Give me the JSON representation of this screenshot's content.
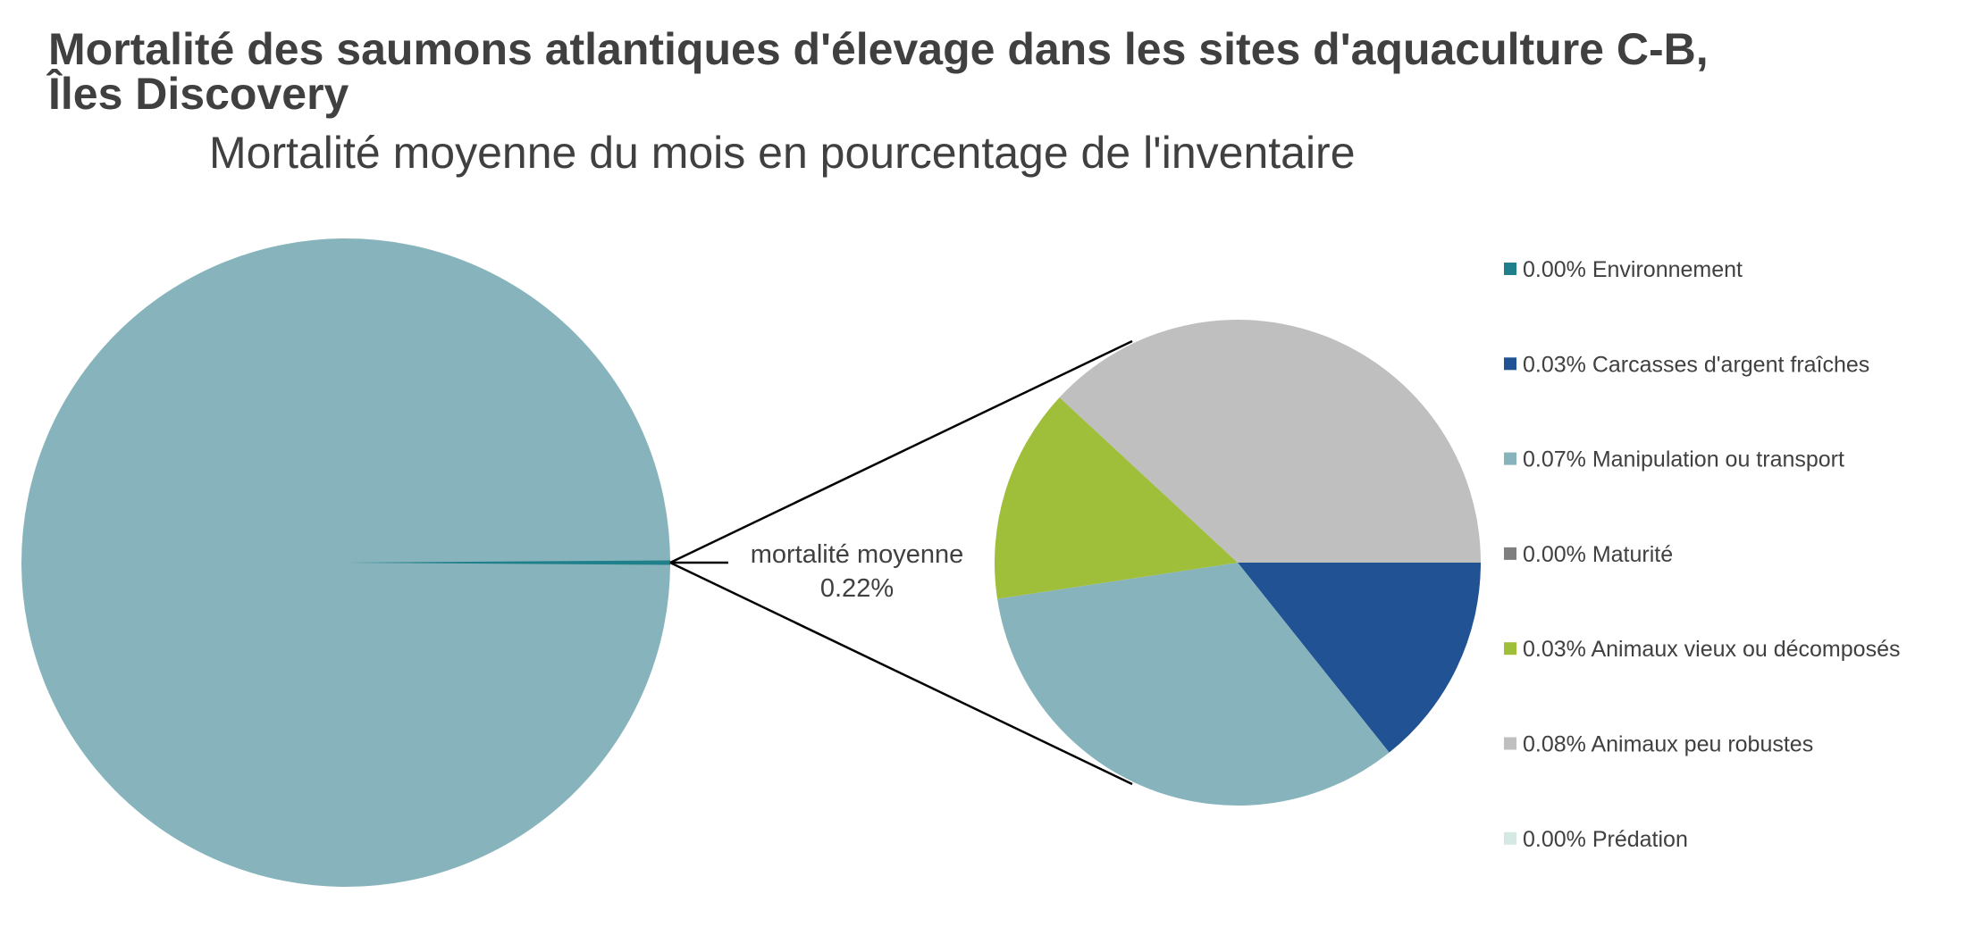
{
  "chart_data": {
    "type": "pie",
    "subtype": "pie-of-pie",
    "title_lines": [
      "Mortalité des saumons atlantiques d'élevage dans les sites d'aquaculture C-B,",
      "Îles Discovery"
    ],
    "subtitle": "Mortalité moyenne du mois en pourcentage de l'inventaire",
    "unit": "%",
    "main_pie": {
      "remainder_value": 99.78,
      "remainder_color": "#87b4bc",
      "aggregate_label": "mortalité moyenne",
      "aggregate_value_label": "0.22%",
      "aggregate_value": 0.22
    },
    "slices": [
      {
        "name": "Environnement",
        "value": 0.0,
        "label": "0.00%",
        "color": "#1f7f8a"
      },
      {
        "name": "Carcasses d'argent fraîches",
        "value": 0.03,
        "label": "0.03%",
        "color": "#215294"
      },
      {
        "name": "Manipulation ou transport",
        "value": 0.07,
        "label": "0.07%",
        "color": "#87b4bc"
      },
      {
        "name": "Maturité",
        "value": 0.0,
        "label": "0.00%",
        "color": "#7f7f7f"
      },
      {
        "name": "Animaux vieux ou décomposés",
        "value": 0.03,
        "label": "0.03%",
        "color": "#9fbe3a"
      },
      {
        "name": "Animaux peu robustes",
        "value": 0.08,
        "label": "0.08%",
        "color": "#bfbfbf"
      },
      {
        "name": "Prédation",
        "value": 0.0,
        "label": "0.00%",
        "color": "#d5e8e4"
      }
    ],
    "legend_position": "right"
  }
}
